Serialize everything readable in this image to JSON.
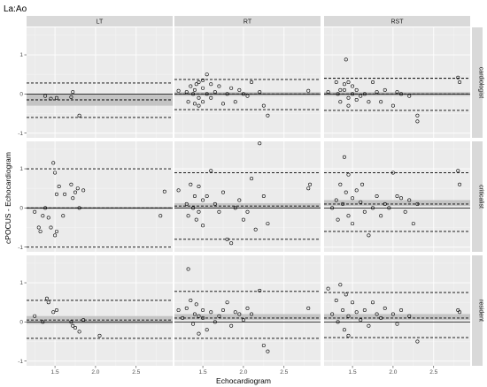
{
  "chart_data": {
    "type": "scatter",
    "title": "La:Ao",
    "xlabel": "Echocardiogram",
    "ylabel": "cPOCUS - Echocardiogram",
    "xlim": [
      1.15,
      2.95
    ],
    "ylim": [
      -1.12,
      1.7
    ],
    "x_ticks": [
      1.5,
      2.0,
      2.5
    ],
    "y_ticks": [
      -1,
      0,
      1
    ],
    "facet_columns": [
      "LT",
      "RT",
      "RST"
    ],
    "facet_rows": [
      "cardiologist",
      "criticalist",
      "resident"
    ],
    "grid": true,
    "panels": [
      {
        "row": "cardiologist",
        "col": "LT",
        "bias": -0.15,
        "ci": [
          -0.3,
          0.0
        ],
        "loa": [
          -0.6,
          0.28
        ],
        "points": [
          [
            1.38,
            -0.05
          ],
          [
            1.45,
            -0.12
          ],
          [
            1.52,
            -0.1
          ],
          [
            1.7,
            -0.08
          ],
          [
            1.72,
            0.05
          ],
          [
            1.8,
            -0.55
          ]
        ]
      },
      {
        "row": "cardiologist",
        "col": "RT",
        "bias": 0.0,
        "ci": [
          -0.05,
          0.05
        ],
        "loa": [
          -0.4,
          0.37
        ],
        "points": [
          [
            1.2,
            0.08
          ],
          [
            1.3,
            0.05
          ],
          [
            1.32,
            -0.2
          ],
          [
            1.35,
            0.2
          ],
          [
            1.38,
            0.0
          ],
          [
            1.4,
            0.1
          ],
          [
            1.4,
            -0.25
          ],
          [
            1.42,
            0.25
          ],
          [
            1.45,
            -0.1
          ],
          [
            1.45,
            0.3
          ],
          [
            1.45,
            -0.3
          ],
          [
            1.5,
            0.15
          ],
          [
            1.5,
            -0.2
          ],
          [
            1.5,
            0.35
          ],
          [
            1.55,
            0.5
          ],
          [
            1.55,
            0.0
          ],
          [
            1.6,
            0.25
          ],
          [
            1.6,
            -0.1
          ],
          [
            1.65,
            0.05
          ],
          [
            1.7,
            0.2
          ],
          [
            1.75,
            -0.25
          ],
          [
            1.8,
            0.0
          ],
          [
            1.85,
            0.15
          ],
          [
            1.9,
            -0.2
          ],
          [
            1.95,
            0.1
          ],
          [
            2.0,
            0.0
          ],
          [
            2.05,
            -0.05
          ],
          [
            2.1,
            0.3
          ],
          [
            2.2,
            0.05
          ],
          [
            2.25,
            -0.3
          ],
          [
            2.3,
            -0.55
          ],
          [
            2.8,
            0.08
          ]
        ]
      },
      {
        "row": "cardiologist",
        "col": "RST",
        "bias": 0.0,
        "ci": [
          -0.05,
          0.05
        ],
        "loa": [
          -0.42,
          0.4
        ],
        "points": [
          [
            1.2,
            0.05
          ],
          [
            1.3,
            0.3
          ],
          [
            1.32,
            0.0
          ],
          [
            1.35,
            0.1
          ],
          [
            1.35,
            -0.2
          ],
          [
            1.4,
            0.25
          ],
          [
            1.4,
            0.1
          ],
          [
            1.42,
            0.88
          ],
          [
            1.45,
            -0.1
          ],
          [
            1.45,
            0.3
          ],
          [
            1.45,
            -0.3
          ],
          [
            1.5,
            0.0
          ],
          [
            1.5,
            0.2
          ],
          [
            1.55,
            -0.15
          ],
          [
            1.55,
            0.1
          ],
          [
            1.6,
            -0.05
          ],
          [
            1.65,
            0.0
          ],
          [
            1.7,
            -0.2
          ],
          [
            1.75,
            0.3
          ],
          [
            1.8,
            0.05
          ],
          [
            1.85,
            -0.2
          ],
          [
            1.9,
            0.1
          ],
          [
            2.0,
            -0.3
          ],
          [
            2.05,
            0.05
          ],
          [
            2.1,
            0.0
          ],
          [
            2.2,
            -0.05
          ],
          [
            2.3,
            -0.55
          ],
          [
            2.3,
            -0.7
          ],
          [
            2.8,
            0.42
          ],
          [
            2.82,
            0.3
          ]
        ]
      },
      {
        "row": "criticalist",
        "col": "LT",
        "bias": 0.0,
        "ci": [
          -0.03,
          0.03
        ],
        "loa": [
          -1.0,
          1.0
        ],
        "points": [
          [
            1.25,
            -0.1
          ],
          [
            1.3,
            -0.5
          ],
          [
            1.32,
            -0.6
          ],
          [
            1.35,
            -0.2
          ],
          [
            1.38,
            0.0
          ],
          [
            1.42,
            -0.25
          ],
          [
            1.45,
            -0.5
          ],
          [
            1.48,
            1.15
          ],
          [
            1.5,
            -0.7
          ],
          [
            1.5,
            0.9
          ],
          [
            1.52,
            -0.6
          ],
          [
            1.52,
            0.35
          ],
          [
            1.55,
            0.55
          ],
          [
            1.6,
            -0.2
          ],
          [
            1.62,
            0.35
          ],
          [
            1.7,
            0.6
          ],
          [
            1.72,
            0.25
          ],
          [
            1.75,
            0.4
          ],
          [
            1.78,
            0.5
          ],
          [
            1.8,
            0.0
          ],
          [
            1.85,
            0.45
          ],
          [
            2.8,
            -0.2
          ],
          [
            2.85,
            0.42
          ]
        ]
      },
      {
        "row": "criticalist",
        "col": "RT",
        "bias": 0.05,
        "ci": [
          -0.0,
          0.12
        ],
        "loa": [
          -0.8,
          0.9
        ],
        "points": [
          [
            1.2,
            0.45
          ],
          [
            1.3,
            0.1
          ],
          [
            1.32,
            -0.2
          ],
          [
            1.35,
            0.6
          ],
          [
            1.38,
            0.0
          ],
          [
            1.4,
            0.3
          ],
          [
            1.42,
            -0.3
          ],
          [
            1.45,
            0.55
          ],
          [
            1.45,
            -0.1
          ],
          [
            1.5,
            0.2
          ],
          [
            1.5,
            -0.45
          ],
          [
            1.55,
            0.3
          ],
          [
            1.6,
            0.95
          ],
          [
            1.65,
            0.1
          ],
          [
            1.7,
            -0.1
          ],
          [
            1.75,
            0.4
          ],
          [
            1.8,
            -0.8
          ],
          [
            1.85,
            -0.9
          ],
          [
            1.9,
            0.0
          ],
          [
            1.95,
            0.2
          ],
          [
            2.0,
            -0.3
          ],
          [
            2.05,
            -0.1
          ],
          [
            2.1,
            0.75
          ],
          [
            2.15,
            -0.55
          ],
          [
            2.2,
            1.65
          ],
          [
            2.25,
            0.3
          ],
          [
            2.3,
            -0.4
          ],
          [
            2.8,
            0.5
          ],
          [
            2.82,
            0.6
          ]
        ]
      },
      {
        "row": "criticalist",
        "col": "RST",
        "bias": 0.1,
        "ci": [
          0.05,
          0.2
        ],
        "loa": [
          -0.6,
          0.9
        ],
        "points": [
          [
            1.25,
            0.0
          ],
          [
            1.3,
            0.2
          ],
          [
            1.32,
            -0.3
          ],
          [
            1.35,
            0.6
          ],
          [
            1.38,
            0.1
          ],
          [
            1.4,
            1.3
          ],
          [
            1.42,
            0.4
          ],
          [
            1.45,
            -0.2
          ],
          [
            1.45,
            0.85
          ],
          [
            1.5,
            0.25
          ],
          [
            1.5,
            -0.4
          ],
          [
            1.55,
            0.45
          ],
          [
            1.6,
            0.15
          ],
          [
            1.62,
            0.6
          ],
          [
            1.65,
            -0.1
          ],
          [
            1.7,
            -0.7
          ],
          [
            1.75,
            0.0
          ],
          [
            1.8,
            0.3
          ],
          [
            1.85,
            -0.2
          ],
          [
            1.9,
            0.1
          ],
          [
            1.95,
            0.0
          ],
          [
            2.0,
            0.9
          ],
          [
            2.05,
            0.3
          ],
          [
            2.1,
            0.25
          ],
          [
            2.15,
            -0.1
          ],
          [
            2.2,
            0.2
          ],
          [
            2.25,
            -0.4
          ],
          [
            2.3,
            0.1
          ],
          [
            2.8,
            0.95
          ],
          [
            2.82,
            0.6
          ]
        ]
      },
      {
        "row": "resident",
        "col": "LT",
        "bias": 0.05,
        "ci": [
          -0.05,
          0.15
        ],
        "loa": [
          -0.42,
          0.55
        ],
        "points": [
          [
            1.25,
            0.15
          ],
          [
            1.35,
            0.0
          ],
          [
            1.4,
            0.6
          ],
          [
            1.42,
            0.5
          ],
          [
            1.48,
            0.25
          ],
          [
            1.52,
            0.3
          ],
          [
            1.7,
            0.0
          ],
          [
            1.72,
            -0.1
          ],
          [
            1.75,
            -0.15
          ],
          [
            1.8,
            -0.25
          ],
          [
            1.85,
            0.05
          ],
          [
            2.05,
            -0.35
          ]
        ]
      },
      {
        "row": "resident",
        "col": "RT",
        "bias": 0.1,
        "ci": [
          0.05,
          0.2
        ],
        "loa": [
          -0.42,
          0.78
        ],
        "points": [
          [
            1.2,
            0.3
          ],
          [
            1.25,
            0.1
          ],
          [
            1.3,
            0.35
          ],
          [
            1.32,
            1.35
          ],
          [
            1.35,
            0.55
          ],
          [
            1.38,
            -0.05
          ],
          [
            1.4,
            0.2
          ],
          [
            1.42,
            0.45
          ],
          [
            1.45,
            -0.3
          ],
          [
            1.45,
            0.15
          ],
          [
            1.5,
            0.1
          ],
          [
            1.5,
            0.3
          ],
          [
            1.55,
            -0.2
          ],
          [
            1.6,
            0.25
          ],
          [
            1.65,
            0.0
          ],
          [
            1.7,
            0.15
          ],
          [
            1.75,
            0.3
          ],
          [
            1.8,
            0.5
          ],
          [
            1.85,
            -0.1
          ],
          [
            1.9,
            0.25
          ],
          [
            1.95,
            0.2
          ],
          [
            2.0,
            0.05
          ],
          [
            2.05,
            0.35
          ],
          [
            2.1,
            0.2
          ],
          [
            2.2,
            0.8
          ],
          [
            2.25,
            -0.6
          ],
          [
            2.3,
            -0.75
          ],
          [
            2.8,
            0.35
          ]
        ]
      },
      {
        "row": "resident",
        "col": "RST",
        "bias": 0.1,
        "ci": [
          0.05,
          0.2
        ],
        "loa": [
          -0.4,
          0.75
        ],
        "points": [
          [
            1.2,
            0.85
          ],
          [
            1.25,
            0.2
          ],
          [
            1.3,
            0.55
          ],
          [
            1.32,
            0.0
          ],
          [
            1.35,
            0.95
          ],
          [
            1.38,
            0.3
          ],
          [
            1.4,
            -0.2
          ],
          [
            1.42,
            0.7
          ],
          [
            1.45,
            0.15
          ],
          [
            1.45,
            -0.35
          ],
          [
            1.5,
            0.5
          ],
          [
            1.55,
            0.25
          ],
          [
            1.6,
            0.05
          ],
          [
            1.65,
            0.3
          ],
          [
            1.7,
            -0.1
          ],
          [
            1.75,
            0.5
          ],
          [
            1.8,
            0.2
          ],
          [
            1.85,
            0.1
          ],
          [
            1.9,
            0.35
          ],
          [
            2.0,
            0.2
          ],
          [
            2.05,
            -0.05
          ],
          [
            2.1,
            0.3
          ],
          [
            2.2,
            0.15
          ],
          [
            2.3,
            -0.5
          ],
          [
            2.8,
            0.3
          ],
          [
            2.82,
            0.25
          ]
        ]
      }
    ]
  },
  "colors": {
    "panel_bg": "#ebebeb",
    "strip_bg": "#d9d9d9",
    "grid_major": "#ffffff",
    "ci_band": "#bdbdbd",
    "point_stroke": "#000000"
  }
}
